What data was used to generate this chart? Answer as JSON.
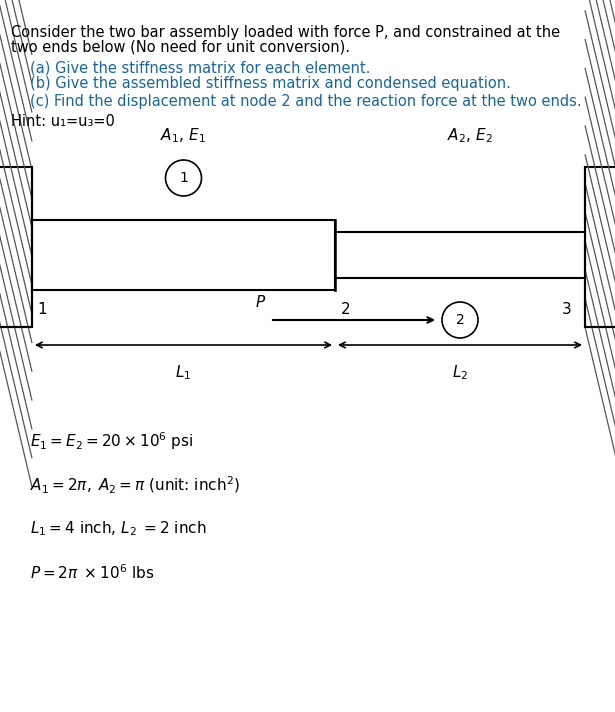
{
  "bg_color": "#ffffff",
  "text_color": "#000000",
  "blue_color": "#1a6699",
  "title_lines": [
    "Consider the two bar assembly loaded with force P, and constrained at the",
    "two ends below (No need for unit conversion)."
  ],
  "questions": [
    "(a) Give the stiffness matrix for each element.",
    "(b) Give the assembled stiffness matrix and condensed equation.",
    "(c) Find the displacement at node 2 and the reaction force at the two ends."
  ],
  "hint": "Hint: u₁=u₃=0",
  "params": [
    "$E_1 = E_2 = 20 \\times 10^6$ psi",
    "$A_1 = 2\\pi,\\; A_2 = \\pi$ (unit: inch$^2$)",
    "$L_1 = 4$ inch, $L_2\\; = 2$ inch",
    "$P = 2\\pi \\; \\times 10^6$ lbs"
  ],
  "hatch_color": "#555555",
  "wall_color": "#000000",
  "bar_color": "#000000"
}
